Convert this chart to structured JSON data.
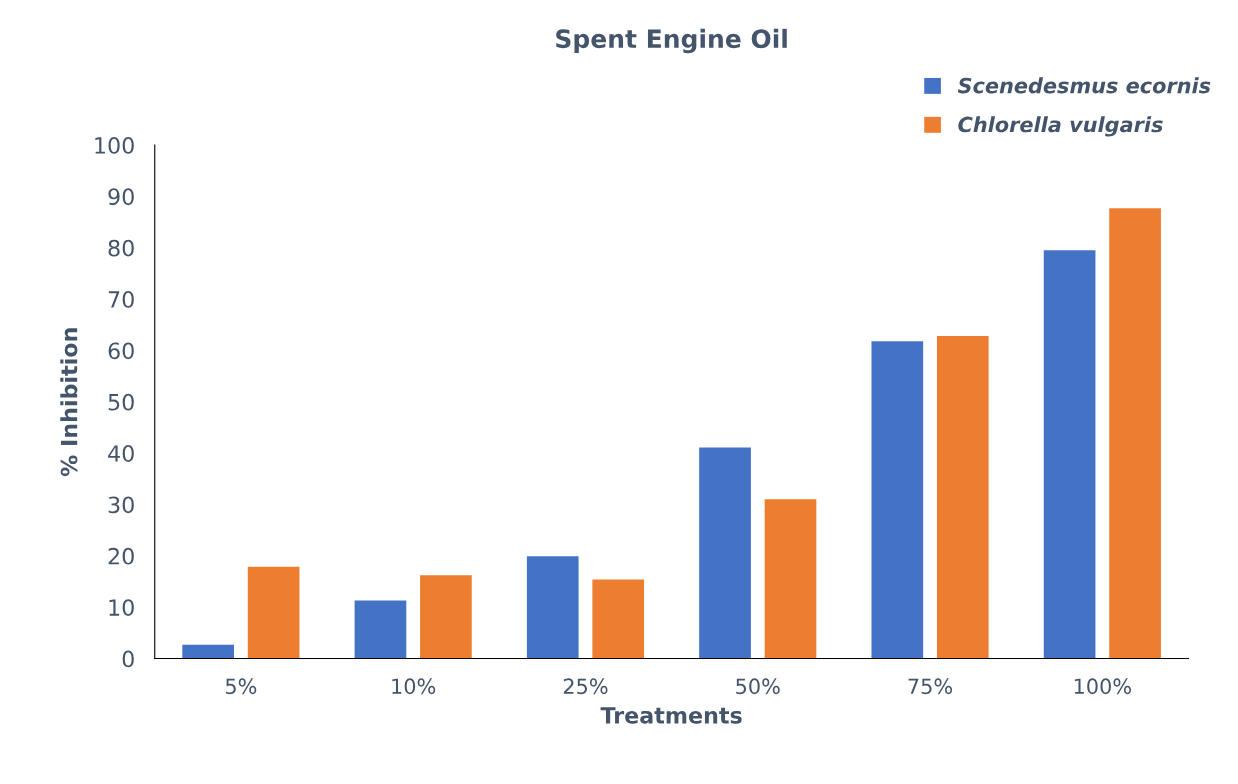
{
  "chart_data": {
    "type": "bar",
    "title": "Spent Engine Oil",
    "xlabel": "Treatments",
    "ylabel": "% Inhibition",
    "categories": [
      "5%",
      "10%",
      "25%",
      "50%",
      "75%",
      "100%"
    ],
    "series": [
      {
        "name": "Scenedesmus ecornis",
        "color": "#4472c4",
        "values": [
          2.7,
          11.3,
          19.9,
          41.1,
          61.8,
          79.5
        ]
      },
      {
        "name": "Chlorella vulgaris",
        "color": "#ed7d31",
        "values": [
          17.9,
          16.2,
          15.4,
          31.0,
          62.8,
          87.7
        ]
      }
    ],
    "ylim": [
      0,
      100
    ],
    "yticks": [
      0,
      10,
      20,
      30,
      40,
      50,
      60,
      70,
      80,
      90,
      100
    ],
    "grid": false,
    "legend": "top right"
  }
}
